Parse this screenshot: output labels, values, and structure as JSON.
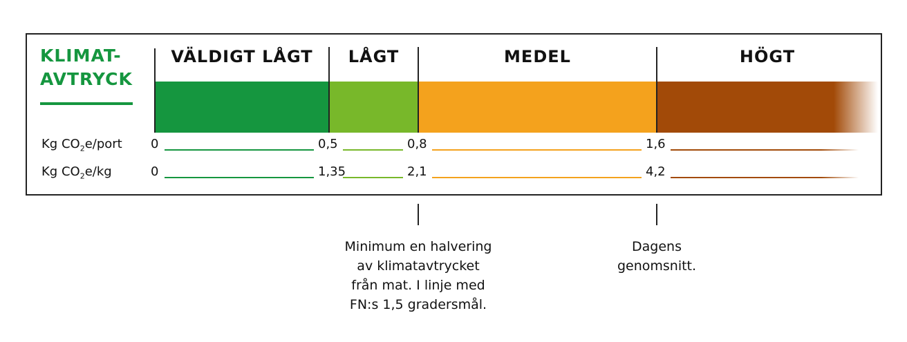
{
  "title": [
    "KLIMAT-",
    "AVTRYCK"
  ],
  "levels": [
    {
      "name": "VÄLDIGT LÅGT",
      "color": "#15963f"
    },
    {
      "name": "LÅGT",
      "color": "#78b82a"
    },
    {
      "name": "MEDEL",
      "color": "#f4a21d"
    },
    {
      "name": "HÖGT",
      "color": "#a24a08"
    }
  ],
  "rows": [
    {
      "label": {
        "prefix": "Kg CO",
        "sub": "2",
        "suffix": "e/port"
      },
      "values": [
        "0",
        "0,5",
        "0,8",
        "1,6"
      ]
    },
    {
      "label": {
        "prefix": "Kg CO",
        "sub": "2",
        "suffix": "e/kg"
      },
      "values": [
        "0",
        "1,35",
        "2,1",
        "4,2"
      ]
    }
  ],
  "notes": [
    {
      "lines": [
        "Minimum en halvering",
        "av klimatavtrycket",
        "från mat. I linje med",
        "FN:s 1,5 gradersmål."
      ]
    },
    {
      "lines": [
        "Dagens",
        "genomsnitt."
      ]
    }
  ]
}
